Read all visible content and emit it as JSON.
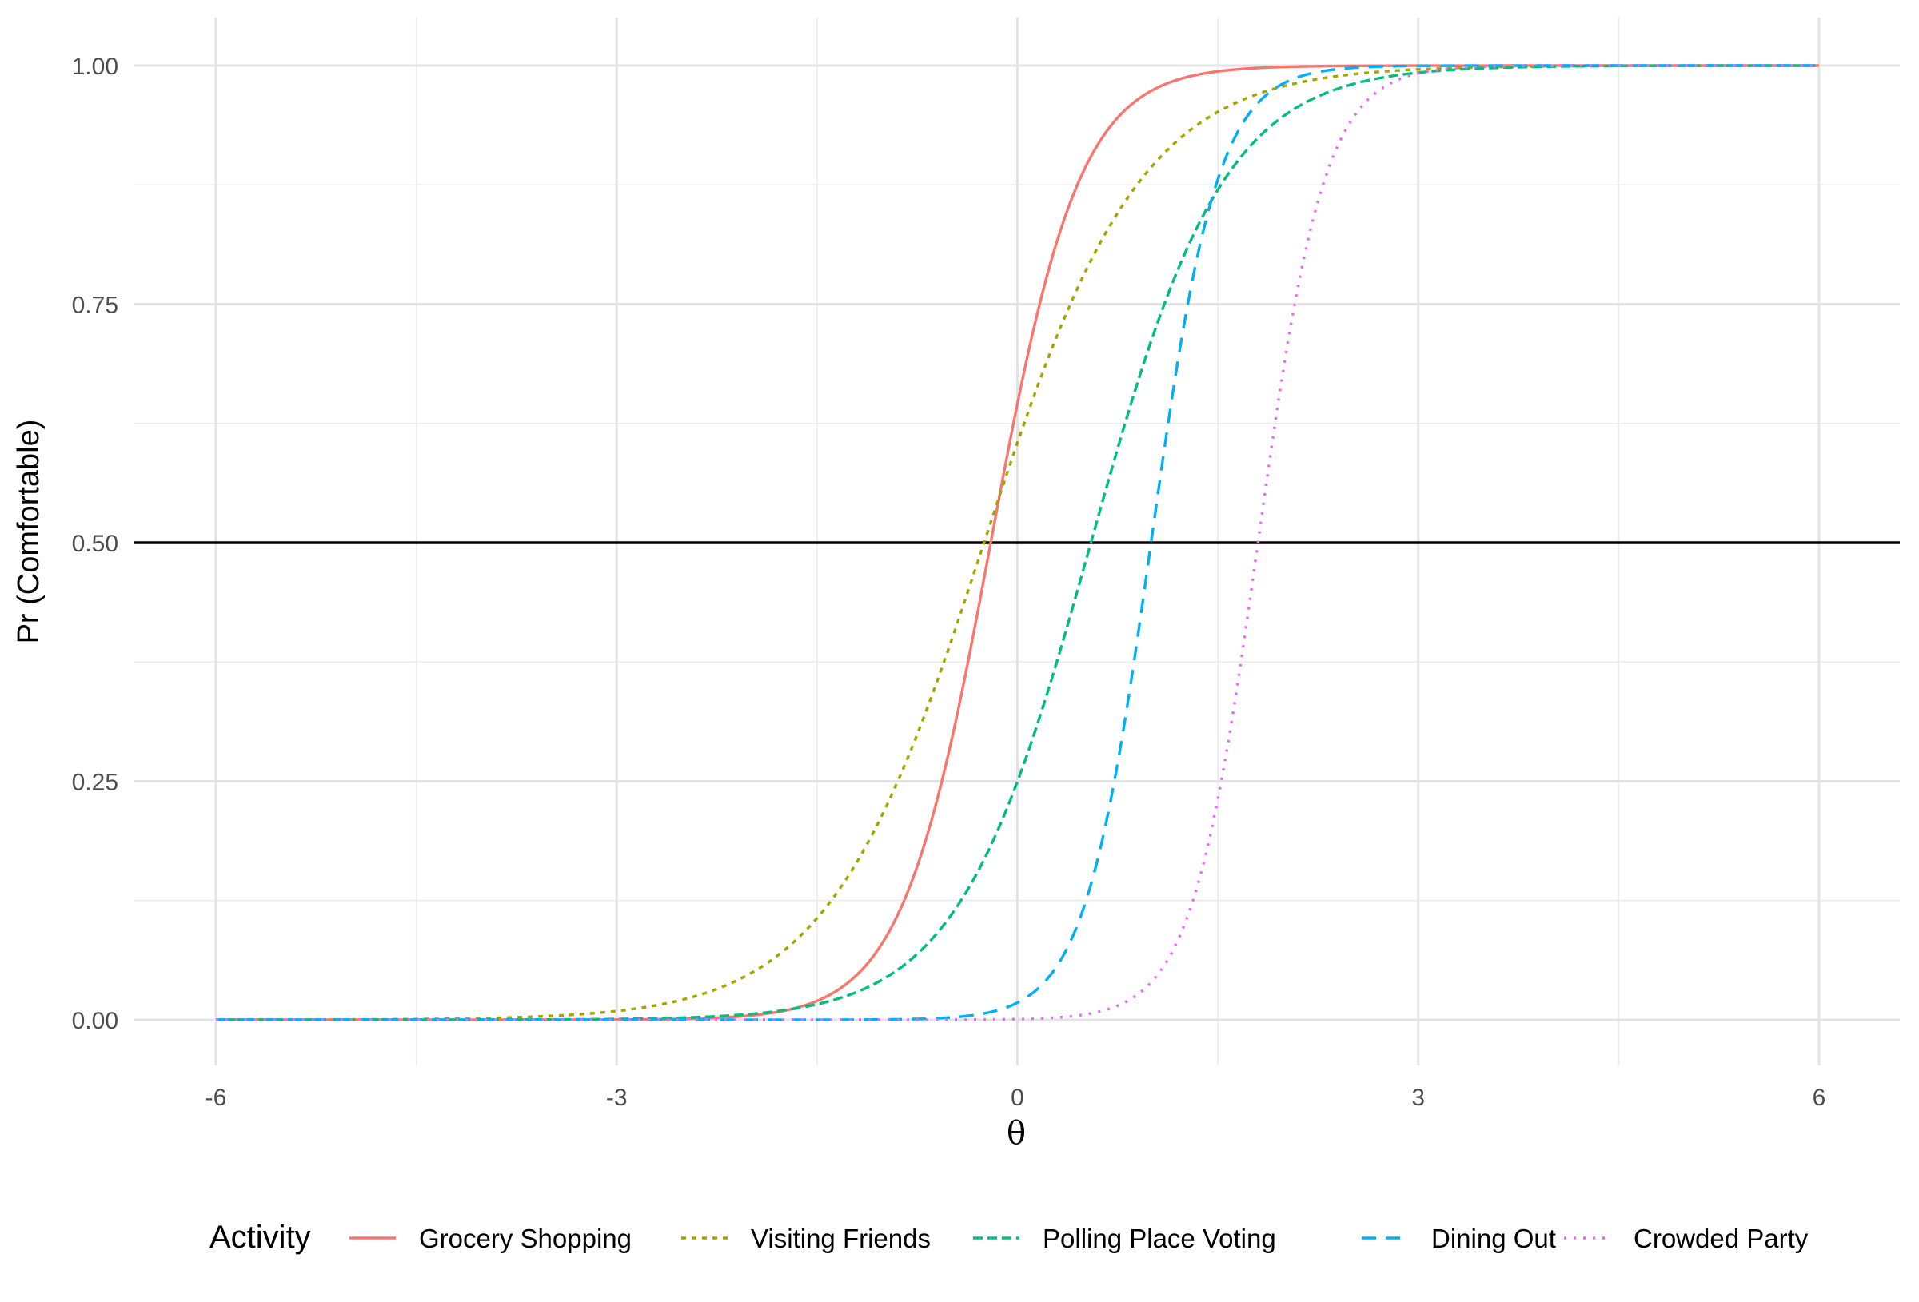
{
  "chart_data": {
    "type": "line",
    "title": "",
    "xlabel": "θ",
    "ylabel": "Pr (Comfortable)",
    "xlim": [
      -6,
      6
    ],
    "ylim": [
      0,
      1
    ],
    "x_ticks": [
      -6,
      -3,
      0,
      3,
      6
    ],
    "x_tick_labels": [
      "-6",
      "-3",
      "0",
      "3",
      "6"
    ],
    "y_ticks": [
      0,
      0.25,
      0.5,
      0.75,
      1
    ],
    "y_tick_labels": [
      "0.00",
      "0.25",
      "0.50",
      "0.75",
      "1.00"
    ],
    "grid": true,
    "reference_line": {
      "y": 0.5,
      "color": "#000000"
    },
    "legend": {
      "title": "Activity",
      "position": "bottom"
    },
    "series": [
      {
        "name": "Grocery Shopping",
        "color": "#F8766D",
        "dash": "solid",
        "difficulty": -0.2,
        "discrimination": 3.0
      },
      {
        "name": "Visiting Friends",
        "color": "#A3A500",
        "dash": "dotted",
        "difficulty": -0.25,
        "discrimination": 1.7
      },
      {
        "name": "Polling Place Voting",
        "color": "#00BF7D",
        "dash": "dashed",
        "difficulty": 0.55,
        "discrimination": 2.0
      },
      {
        "name": "Dining Out",
        "color": "#00B0F6",
        "dash": "longdash",
        "difficulty": 1.0,
        "discrimination": 4.0
      },
      {
        "name": "Crowded Party",
        "color": "#E76BF3",
        "dash": "dotted-fine",
        "difficulty": 1.8,
        "discrimination": 4.0
      }
    ]
  }
}
